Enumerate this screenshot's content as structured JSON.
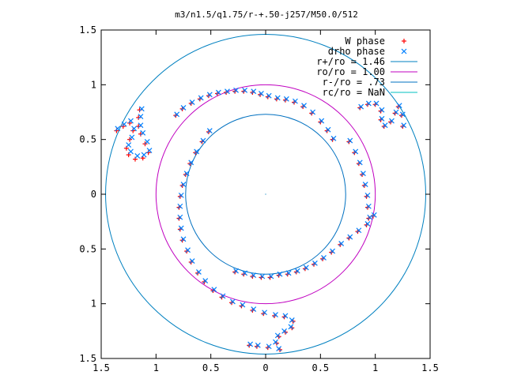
{
  "chart_data": {
    "type": "scatter",
    "title": "m3/n1.5/q1.75/r-+.50-j257/M50.0/512",
    "xlim": [
      -1.5,
      1.5
    ],
    "ylim": [
      -1.5,
      1.5
    ],
    "x_ticks": [
      {
        "value": -1.5,
        "label": "1.5"
      },
      {
        "value": -1,
        "label": "1"
      },
      {
        "value": -0.5,
        "label": "0.5"
      },
      {
        "value": 0,
        "label": "0"
      },
      {
        "value": 0.5,
        "label": "0.5"
      },
      {
        "value": 1,
        "label": "1"
      },
      {
        "value": 1.5,
        "label": "1.5"
      }
    ],
    "y_ticks": [
      {
        "value": 1.5,
        "label": "1.5"
      },
      {
        "value": 1,
        "label": "1"
      },
      {
        "value": 0.5,
        "label": "0.5"
      },
      {
        "value": 0,
        "label": "0"
      },
      {
        "value": -0.5,
        "label": "0.5"
      },
      {
        "value": -1,
        "label": "1"
      },
      {
        "value": -1.5,
        "label": "1.5"
      }
    ],
    "grid": false,
    "legend_position": "top-right",
    "series": [
      {
        "name": "W phase",
        "marker": "plus",
        "color": "#ff0000",
        "points": [
          [
            -1.36,
            0.58
          ],
          [
            -1.3,
            0.62
          ],
          [
            -1.24,
            0.65
          ],
          [
            -1.21,
            0.58
          ],
          [
            -1.24,
            0.5
          ],
          [
            -1.27,
            0.42
          ],
          [
            -1.25,
            0.36
          ],
          [
            -1.19,
            0.32
          ],
          [
            -1.12,
            0.33
          ],
          [
            -1.07,
            0.38
          ],
          [
            -1.1,
            0.46
          ],
          [
            -1.14,
            0.55
          ],
          [
            -1.16,
            0.62
          ],
          [
            -1.16,
            0.7
          ],
          [
            -1.15,
            0.77
          ],
          [
            -0.82,
            0.72
          ],
          [
            -0.76,
            0.78
          ],
          [
            -0.68,
            0.83
          ],
          [
            -0.6,
            0.87
          ],
          [
            -0.52,
            0.9
          ],
          [
            -0.44,
            0.92
          ],
          [
            -0.36,
            0.93
          ],
          [
            -0.28,
            0.94
          ],
          [
            -0.2,
            0.94
          ],
          [
            -0.12,
            0.93
          ],
          [
            -0.05,
            0.91
          ],
          [
            0.02,
            0.89
          ],
          [
            0.1,
            0.87
          ],
          [
            0.18,
            0.86
          ],
          [
            0.26,
            0.84
          ],
          [
            0.34,
            0.8
          ],
          [
            0.42,
            0.74
          ],
          [
            0.5,
            0.66
          ],
          [
            0.56,
            0.58
          ],
          [
            0.61,
            0.5
          ],
          [
            -0.52,
            0.57
          ],
          [
            -0.58,
            0.48
          ],
          [
            -0.64,
            0.38
          ],
          [
            -0.69,
            0.28
          ],
          [
            -0.73,
            0.18
          ],
          [
            -0.76,
            0.08
          ],
          [
            -0.78,
            -0.02
          ],
          [
            -0.79,
            -0.12
          ],
          [
            -0.79,
            -0.22
          ],
          [
            -0.78,
            -0.32
          ],
          [
            -0.76,
            -0.42
          ],
          [
            -0.72,
            -0.52
          ],
          [
            -0.68,
            -0.62
          ],
          [
            -0.62,
            -0.72
          ],
          [
            -0.56,
            -0.8
          ],
          [
            -0.48,
            -0.88
          ],
          [
            -0.4,
            -0.94
          ],
          [
            -0.31,
            -0.99
          ],
          [
            -0.22,
            -1.02
          ],
          [
            -0.12,
            -1.06
          ],
          [
            -0.02,
            -1.09
          ],
          [
            0.08,
            -1.11
          ],
          [
            0.17,
            -1.12
          ],
          [
            0.25,
            -1.16
          ],
          [
            0.24,
            -1.22
          ],
          [
            0.18,
            -1.26
          ],
          [
            0.12,
            -1.3
          ],
          [
            0.1,
            -1.36
          ],
          [
            0.13,
            -1.42
          ],
          [
            -0.15,
            -1.38
          ],
          [
            -0.08,
            -1.39
          ],
          [
            0.02,
            -1.4
          ],
          [
            -0.28,
            -0.71
          ],
          [
            -0.2,
            -0.73
          ],
          [
            -0.12,
            -0.75
          ],
          [
            -0.04,
            -0.76
          ],
          [
            0.04,
            -0.76
          ],
          [
            0.12,
            -0.74
          ],
          [
            0.2,
            -0.73
          ],
          [
            0.28,
            -0.71
          ],
          [
            0.36,
            -0.68
          ],
          [
            0.44,
            -0.64
          ],
          [
            0.52,
            -0.59
          ],
          [
            0.6,
            -0.53
          ],
          [
            0.68,
            -0.46
          ],
          [
            0.76,
            -0.4
          ],
          [
            0.84,
            -0.34
          ],
          [
            0.92,
            -0.28
          ],
          [
            0.98,
            -0.2
          ],
          [
            0.76,
            0.48
          ],
          [
            0.81,
            0.38
          ],
          [
            0.85,
            0.28
          ],
          [
            0.88,
            0.18
          ],
          [
            0.9,
            0.08
          ],
          [
            0.92,
            -0.02
          ],
          [
            0.93,
            -0.12
          ],
          [
            0.94,
            -0.22
          ],
          [
            0.86,
            0.79
          ],
          [
            0.93,
            0.82
          ],
          [
            1.0,
            0.82
          ],
          [
            1.05,
            0.76
          ],
          [
            1.05,
            0.68
          ],
          [
            1.08,
            0.62
          ],
          [
            1.14,
            0.66
          ],
          [
            1.18,
            0.74
          ],
          [
            1.21,
            0.8
          ],
          [
            1.24,
            0.72
          ],
          [
            1.25,
            0.62
          ]
        ]
      },
      {
        "name": "drho phase",
        "marker": "cross",
        "color": "#0080ff",
        "points": [
          [
            -1.35,
            0.6
          ],
          [
            -1.29,
            0.64
          ],
          [
            -1.23,
            0.67
          ],
          [
            -1.2,
            0.6
          ],
          [
            -1.22,
            0.52
          ],
          [
            -1.25,
            0.45
          ],
          [
            -1.23,
            0.39
          ],
          [
            -1.17,
            0.35
          ],
          [
            -1.11,
            0.36
          ],
          [
            -1.06,
            0.4
          ],
          [
            -1.08,
            0.48
          ],
          [
            -1.12,
            0.56
          ],
          [
            -1.14,
            0.63
          ],
          [
            -1.14,
            0.71
          ],
          [
            -1.13,
            0.78
          ],
          [
            -0.81,
            0.73
          ],
          [
            -0.75,
            0.79
          ],
          [
            -0.67,
            0.84
          ],
          [
            -0.59,
            0.88
          ],
          [
            -0.51,
            0.91
          ],
          [
            -0.43,
            0.93
          ],
          [
            -0.35,
            0.94
          ],
          [
            -0.27,
            0.95
          ],
          [
            -0.19,
            0.95
          ],
          [
            -0.11,
            0.94
          ],
          [
            -0.04,
            0.92
          ],
          [
            0.03,
            0.9
          ],
          [
            0.11,
            0.88
          ],
          [
            0.19,
            0.87
          ],
          [
            0.27,
            0.85
          ],
          [
            0.35,
            0.81
          ],
          [
            0.43,
            0.75
          ],
          [
            0.51,
            0.67
          ],
          [
            0.57,
            0.59
          ],
          [
            0.62,
            0.51
          ],
          [
            -0.51,
            0.58
          ],
          [
            -0.57,
            0.49
          ],
          [
            -0.63,
            0.39
          ],
          [
            -0.68,
            0.29
          ],
          [
            -0.72,
            0.19
          ],
          [
            -0.75,
            0.09
          ],
          [
            -0.77,
            -0.01
          ],
          [
            -0.78,
            -0.11
          ],
          [
            -0.78,
            -0.21
          ],
          [
            -0.77,
            -0.31
          ],
          [
            -0.75,
            -0.41
          ],
          [
            -0.71,
            -0.51
          ],
          [
            -0.67,
            -0.61
          ],
          [
            -0.61,
            -0.71
          ],
          [
            -0.55,
            -0.79
          ],
          [
            -0.47,
            -0.87
          ],
          [
            -0.39,
            -0.93
          ],
          [
            -0.3,
            -0.98
          ],
          [
            -0.21,
            -1.01
          ],
          [
            -0.11,
            -1.05
          ],
          [
            -0.01,
            -1.08
          ],
          [
            0.09,
            -1.1
          ],
          [
            0.18,
            -1.11
          ],
          [
            0.24,
            -1.15
          ],
          [
            0.23,
            -1.21
          ],
          [
            0.17,
            -1.25
          ],
          [
            0.11,
            -1.29
          ],
          [
            0.09,
            -1.35
          ],
          [
            0.12,
            -1.41
          ],
          [
            -0.14,
            -1.37
          ],
          [
            -0.07,
            -1.38
          ],
          [
            0.03,
            -1.39
          ],
          [
            -0.27,
            -0.7
          ],
          [
            -0.19,
            -0.72
          ],
          [
            -0.11,
            -0.74
          ],
          [
            -0.03,
            -0.75
          ],
          [
            0.05,
            -0.75
          ],
          [
            0.13,
            -0.73
          ],
          [
            0.21,
            -0.72
          ],
          [
            0.29,
            -0.7
          ],
          [
            0.37,
            -0.67
          ],
          [
            0.45,
            -0.63
          ],
          [
            0.53,
            -0.58
          ],
          [
            0.61,
            -0.52
          ],
          [
            0.69,
            -0.45
          ],
          [
            0.77,
            -0.39
          ],
          [
            0.85,
            -0.33
          ],
          [
            0.93,
            -0.27
          ],
          [
            0.99,
            -0.19
          ],
          [
            0.77,
            0.49
          ],
          [
            0.82,
            0.39
          ],
          [
            0.86,
            0.29
          ],
          [
            0.89,
            0.19
          ],
          [
            0.91,
            0.09
          ],
          [
            0.93,
            -0.01
          ],
          [
            0.94,
            -0.11
          ],
          [
            0.95,
            -0.21
          ],
          [
            0.87,
            0.8
          ],
          [
            0.94,
            0.83
          ],
          [
            1.01,
            0.83
          ],
          [
            1.06,
            0.77
          ],
          [
            1.06,
            0.69
          ],
          [
            1.09,
            0.63
          ],
          [
            1.15,
            0.67
          ],
          [
            1.19,
            0.75
          ],
          [
            1.22,
            0.81
          ],
          [
            1.25,
            0.73
          ],
          [
            1.26,
            0.63
          ]
        ]
      },
      {
        "name": "r+/ro = 1.46",
        "type": "circle",
        "radius": 1.46,
        "color": "#0080c0"
      },
      {
        "name": "ro/ro = 1.00",
        "type": "circle",
        "radius": 1.0,
        "color": "#c000c0"
      },
      {
        "name": "r-/ro = .73",
        "type": "circle",
        "radius": 0.73,
        "color": "#0070c0"
      },
      {
        "name": "rc/ro = NaN",
        "type": "circle",
        "radius": null,
        "color": "#00c0c0"
      }
    ]
  }
}
